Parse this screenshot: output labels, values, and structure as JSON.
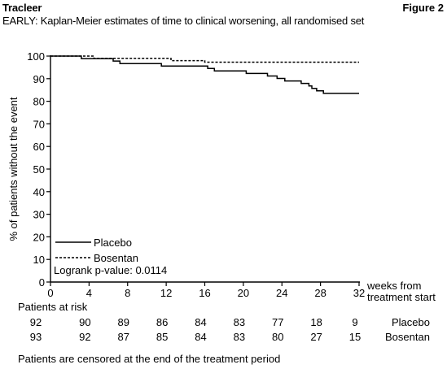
{
  "header": {
    "brand": "Tracleer",
    "figure": "Figure 2",
    "subtitle": "EARLY: Kaplan-Meier estimates of time to clinical worsening, all randomised set"
  },
  "chart_data": {
    "type": "line",
    "title": "EARLY: Kaplan-Meier estimates of time to clinical worsening, all randomised set",
    "ylabel": "% of patients without the event",
    "xlabel": "weeks from treatment start",
    "xlim": [
      0,
      32
    ],
    "ylim": [
      0,
      100
    ],
    "x_ticks": [
      0,
      4,
      8,
      12,
      16,
      20,
      24,
      28,
      32
    ],
    "y_ticks": [
      0,
      10,
      20,
      30,
      40,
      50,
      60,
      70,
      80,
      90,
      100
    ],
    "step": true,
    "grid": false,
    "legend_position": "bottom-left",
    "series": [
      {
        "name": "Placebo",
        "style": "solid",
        "color": "#000000",
        "points": [
          [
            0,
            100
          ],
          [
            3.2,
            100
          ],
          [
            3.2,
            98.9
          ],
          [
            6.5,
            98.9
          ],
          [
            6.5,
            97.8
          ],
          [
            7.2,
            97.8
          ],
          [
            7.2,
            96.7
          ],
          [
            11.5,
            96.7
          ],
          [
            11.5,
            95.6
          ],
          [
            16.3,
            95.6
          ],
          [
            16.3,
            94.5
          ],
          [
            17,
            94.5
          ],
          [
            17,
            93.4
          ],
          [
            20.3,
            93.4
          ],
          [
            20.3,
            92.3
          ],
          [
            22.5,
            92.3
          ],
          [
            22.5,
            91.2
          ],
          [
            23.5,
            91.2
          ],
          [
            23.5,
            90.1
          ],
          [
            24.3,
            90.1
          ],
          [
            24.3,
            89.0
          ],
          [
            26,
            89.0
          ],
          [
            26,
            87.9
          ],
          [
            26.8,
            87.9
          ],
          [
            26.8,
            86.8
          ],
          [
            27.1,
            86.8
          ],
          [
            27.1,
            85.7
          ],
          [
            27.6,
            85.7
          ],
          [
            27.6,
            84.6
          ],
          [
            28.3,
            84.6
          ],
          [
            28.3,
            83.5
          ],
          [
            32,
            83.5
          ]
        ]
      },
      {
        "name": "Bosentan",
        "style": "dashed",
        "color": "#000000",
        "points": [
          [
            0,
            100
          ],
          [
            4.5,
            100
          ],
          [
            4.5,
            99.0
          ],
          [
            12.5,
            99.0
          ],
          [
            12.5,
            98.0
          ],
          [
            16,
            98.0
          ],
          [
            16,
            97.3
          ],
          [
            32,
            97.3
          ]
        ]
      }
    ],
    "annotations": [
      "Logrank p-value: 0.0114"
    ],
    "patients_at_risk": {
      "title": "Patients at risk",
      "weeks": [
        0,
        4,
        8,
        12,
        16,
        20,
        24,
        28,
        32
      ],
      "rows": [
        {
          "name": "Placebo",
          "values": [
            92,
            90,
            89,
            86,
            84,
            83,
            77,
            18,
            9
          ]
        },
        {
          "name": "Bosentan",
          "values": [
            93,
            92,
            87,
            85,
            84,
            83,
            80,
            27,
            15
          ]
        }
      ]
    }
  },
  "footnote": "Patients are censored at the end of the treatment period"
}
